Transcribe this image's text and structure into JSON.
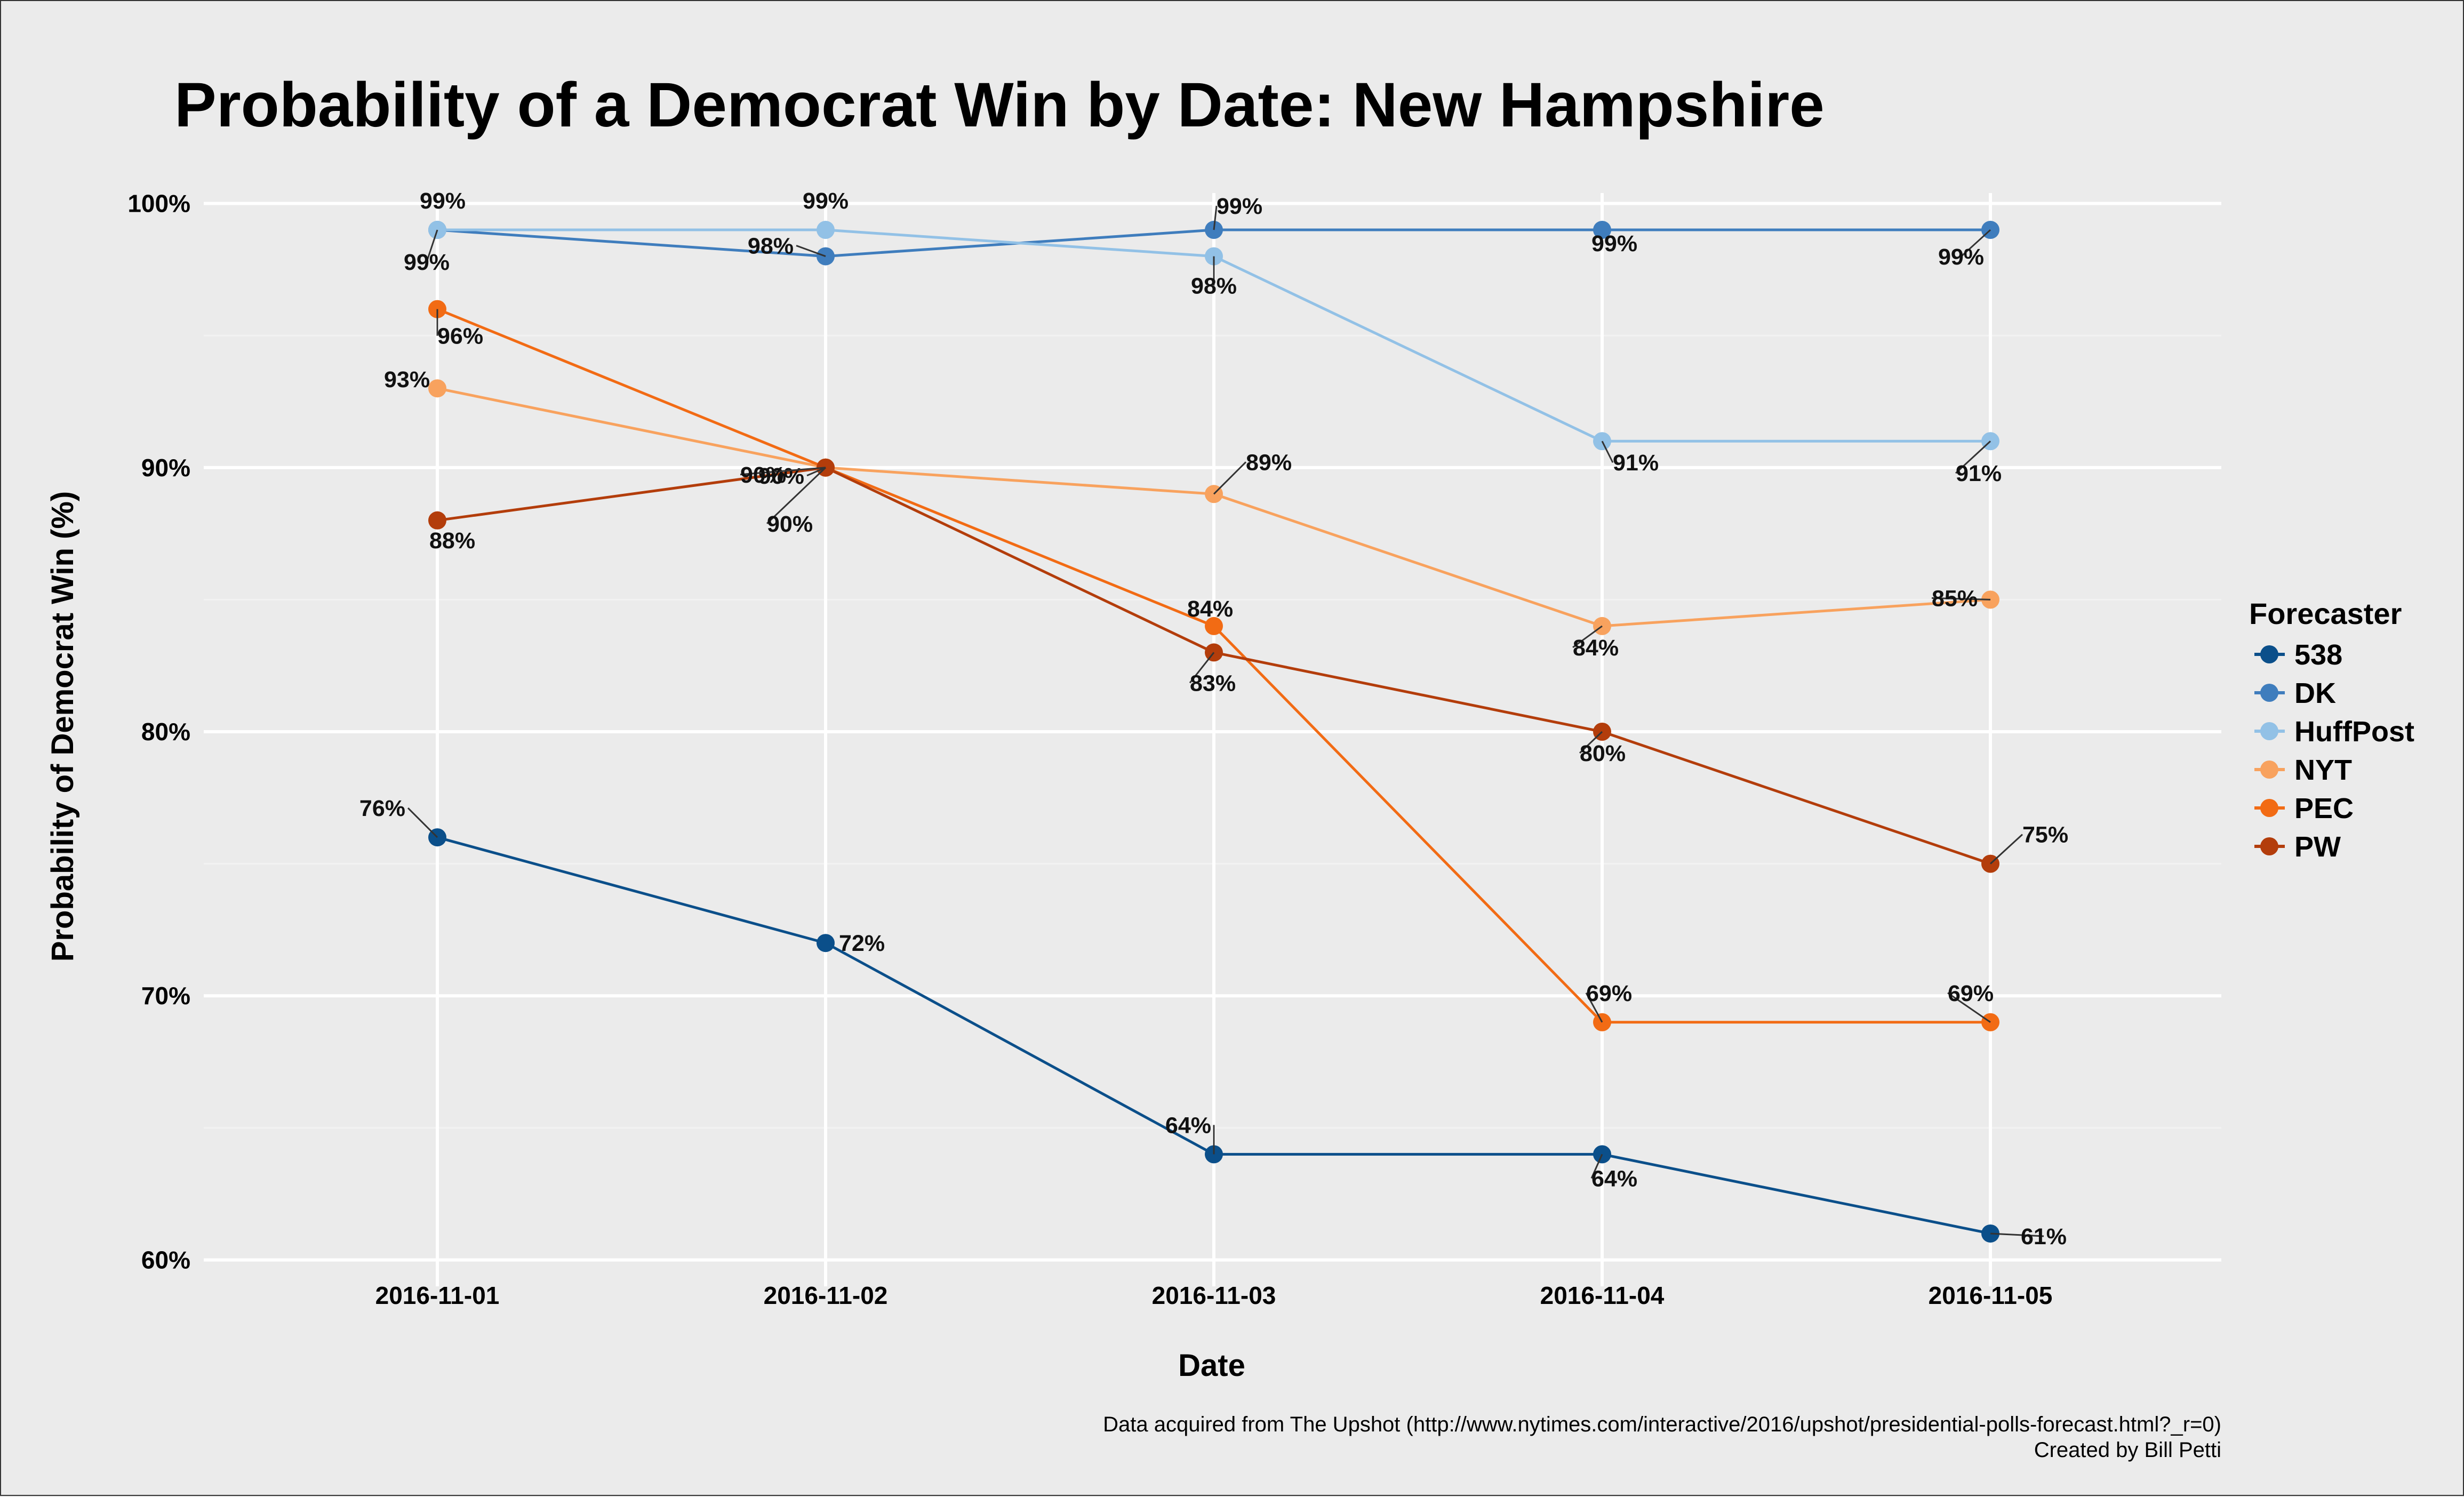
{
  "chart_data": {
    "type": "line",
    "title": "Probability of a Democrat Win by Date: New Hampshire",
    "xlabel": "Date",
    "ylabel": "Probability of Democrat Win (%)",
    "categories": [
      "2016-11-01",
      "2016-11-02",
      "2016-11-03",
      "2016-11-04",
      "2016-11-05"
    ],
    "ylim": [
      59,
      101
    ],
    "yticks": [
      60,
      70,
      80,
      90,
      100
    ],
    "ytick_labels": [
      "60%",
      "70%",
      "80%",
      "90%",
      "100%"
    ],
    "grid": true,
    "legend_title": "Forecaster",
    "legend_position": "right",
    "series": [
      {
        "name": "538",
        "color": "#0b4f8a",
        "values": [
          76,
          72,
          64,
          64,
          61
        ],
        "labels": [
          "76%",
          "72%",
          "64%",
          "64%",
          "61%"
        ]
      },
      {
        "name": "DK",
        "color": "#3f7dbd",
        "values": [
          99,
          98,
          99,
          99,
          99
        ],
        "labels": [
          "99%",
          "98%",
          "99%",
          "99%",
          "99%"
        ]
      },
      {
        "name": "HuffPost",
        "color": "#92c1e6",
        "values": [
          99,
          99,
          98,
          91,
          91
        ],
        "labels": [
          "99%",
          "99%",
          "98%",
          "91%",
          "91%"
        ]
      },
      {
        "name": "NYT",
        "color": "#f8a25e",
        "values": [
          93,
          90,
          89,
          84,
          85
        ],
        "labels": [
          "93%",
          "90%",
          "89%",
          "84%",
          "85%"
        ]
      },
      {
        "name": "PEC",
        "color": "#f26b14",
        "values": [
          96,
          90,
          84,
          69,
          69
        ],
        "labels": [
          "96%",
          "90%",
          "84%",
          "69%",
          "69%"
        ]
      },
      {
        "name": "PW",
        "color": "#b33d0b",
        "values": [
          88,
          90,
          83,
          80,
          75
        ],
        "labels": [
          "88%",
          "90%",
          "83%",
          "80%",
          "75%"
        ]
      }
    ]
  },
  "caption": {
    "line1": "Data acquired from The Upshot (http://www.nytimes.com/interactive/2016/upshot/presidential-polls-forecast.html?_r=0)",
    "line2": "Created by Bill Petti"
  }
}
